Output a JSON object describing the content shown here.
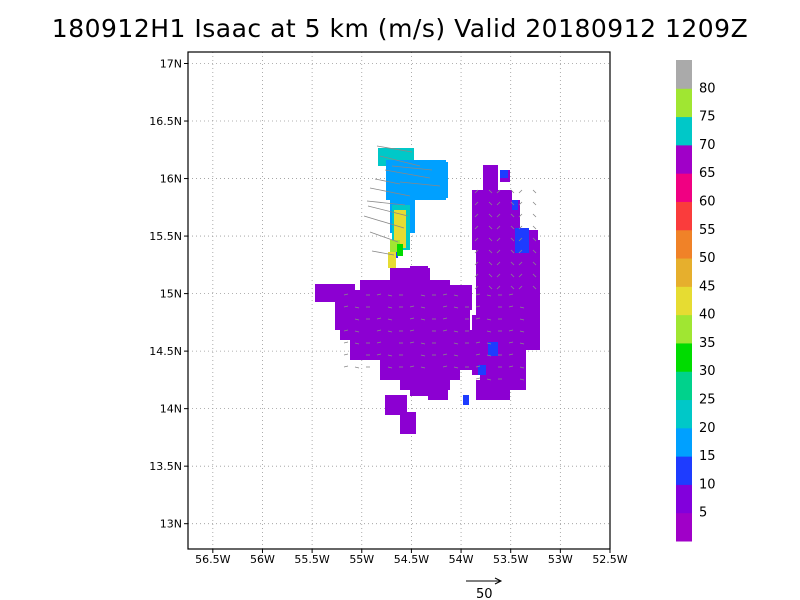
{
  "title": "180912H1 Isaac at 5 km (m/s) Valid 20180912 1209Z",
  "axes": {
    "lon": {
      "min": -56.75,
      "max": -52.5,
      "ticks": [
        -56.5,
        -56,
        -55.5,
        -55,
        -54.5,
        -54,
        -53.5,
        -53,
        -52.5
      ],
      "labels": [
        "56.5W",
        "56W",
        "55.5W",
        "55W",
        "54.5W",
        "54W",
        "53.5W",
        "53W",
        "52.5W"
      ]
    },
    "lat": {
      "min": 12.78,
      "max": 17.1,
      "ticks": [
        13,
        13.5,
        14,
        14.5,
        15,
        15.5,
        16,
        16.5,
        17
      ],
      "labels": [
        "13N",
        "13.5N",
        "14N",
        "14.5N",
        "15N",
        "15.5N",
        "16N",
        "16.5N",
        "17N"
      ]
    },
    "grid": "dotted"
  },
  "colorbar": {
    "labels": [
      "5",
      "10",
      "15",
      "20",
      "25",
      "30",
      "35",
      "40",
      "45",
      "50",
      "55",
      "60",
      "65",
      "70",
      "75",
      "80"
    ],
    "colors": [
      "#a000c8",
      "#8200dc",
      "#1e3cff",
      "#00a0ff",
      "#00c8c8",
      "#00d28c",
      "#00dc00",
      "#a0e632",
      "#e6dc32",
      "#e6af2d",
      "#f08228",
      "#fa3c3c",
      "#f00082",
      "#a000c8",
      "#00c8c8",
      "#a0e632",
      "#aaaaaa"
    ]
  },
  "reference_vector": {
    "label": "50",
    "speed": 50
  },
  "colors": {
    "dominant_purple": "#8c00d2",
    "vector_gray": "#888888"
  }
}
